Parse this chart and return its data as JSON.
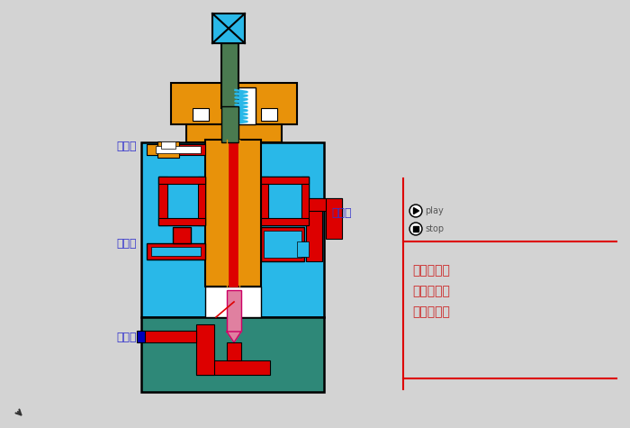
{
  "bg_color": "#d3d3d3",
  "orange": "#E8920A",
  "dark_green": "#4A7A50",
  "cyan": "#29B8E8",
  "teal": "#2E8878",
  "red": "#DD0000",
  "pink": "#E080A0",
  "white": "#FFFFFF",
  "blue_label": "#3333CC",
  "red_label": "#CC2222",
  "gray_label": "#555555",
  "label_泄油口": "泄油口",
  "label_进油口": "进油口",
  "label_控制口": "控制口",
  "label_出油口": "出油口",
  "label_内控内泄式": "内控内泄式",
  "label_外控内泄式": "外控内泄式",
  "label_外控外泄式": "外控外泄式",
  "label_play": "play",
  "label_stop": "stop"
}
